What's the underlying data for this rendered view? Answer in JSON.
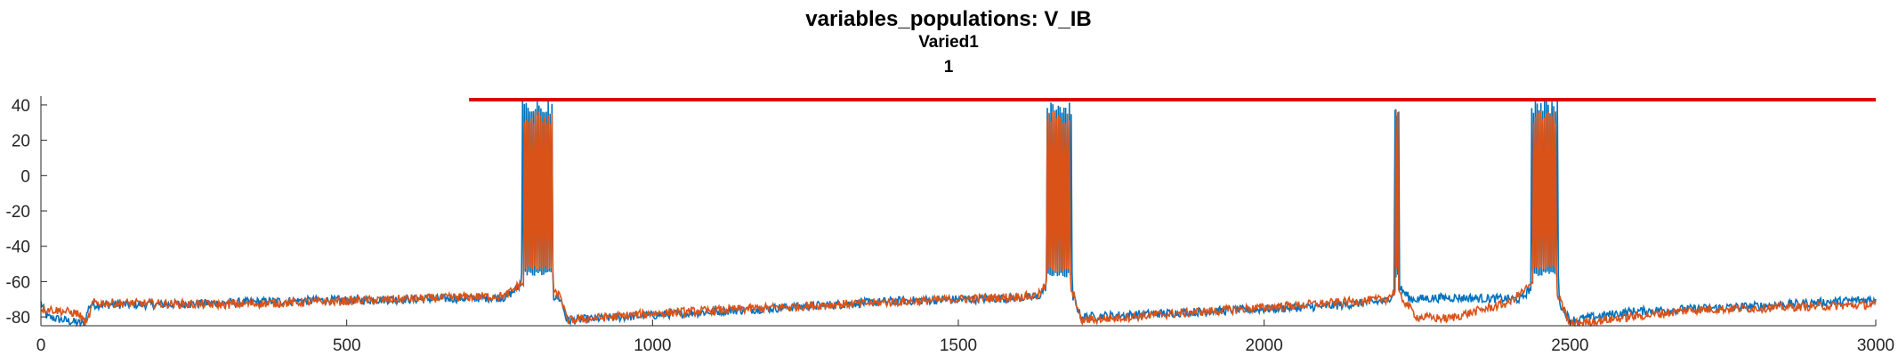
{
  "chart_data": {
    "type": "line",
    "title": "variables_populations: V_IB",
    "subtitle": "Varied1",
    "subtitle2": "1",
    "xlabel": "",
    "ylabel": "",
    "xlim": [
      0,
      3000
    ],
    "ylim": [
      -85,
      45
    ],
    "xticks": [
      0,
      500,
      1000,
      1500,
      2000,
      2500,
      3000
    ],
    "yticks": [
      40,
      20,
      0,
      -20,
      -40,
      -60,
      -80
    ],
    "grid": false,
    "legend": "none",
    "colors": {
      "series1": "#0072BD",
      "series2": "#D95319",
      "threshold": "#E00000",
      "axis": "#262626"
    },
    "series": [
      {
        "color": "#0072BD",
        "baseline": [
          {
            "x": 0,
            "y": -72
          },
          {
            "x": 10,
            "y": -80
          },
          {
            "x": 70,
            "y": -84
          },
          {
            "x": 80,
            "y": -73
          },
          {
            "x": 200,
            "y": -73
          },
          {
            "x": 400,
            "y": -71
          },
          {
            "x": 600,
            "y": -70
          },
          {
            "x": 760,
            "y": -69
          },
          {
            "x": 785,
            "y": -62
          },
          {
            "x": 850,
            "y": -70
          },
          {
            "x": 860,
            "y": -82
          },
          {
            "x": 1000,
            "y": -79
          },
          {
            "x": 1200,
            "y": -75
          },
          {
            "x": 1400,
            "y": -71
          },
          {
            "x": 1630,
            "y": -69
          },
          {
            "x": 1645,
            "y": -62
          },
          {
            "x": 1690,
            "y": -70
          },
          {
            "x": 1700,
            "y": -80
          },
          {
            "x": 1900,
            "y": -77
          },
          {
            "x": 2100,
            "y": -74
          },
          {
            "x": 2200,
            "y": -71
          },
          {
            "x": 2220,
            "y": -63
          },
          {
            "x": 2240,
            "y": -70
          },
          {
            "x": 2300,
            "y": -69
          },
          {
            "x": 2420,
            "y": -70
          },
          {
            "x": 2440,
            "y": -62
          },
          {
            "x": 2480,
            "y": -70
          },
          {
            "x": 2500,
            "y": -82
          },
          {
            "x": 2600,
            "y": -77
          },
          {
            "x": 2800,
            "y": -74
          },
          {
            "x": 3000,
            "y": -70
          }
        ],
        "bursts": [
          {
            "x_start": 785,
            "x_end": 838,
            "y_min": -57,
            "y_max": 43
          },
          {
            "x_start": 1643,
            "x_end": 1686,
            "y_min": -58,
            "y_max": 42
          },
          {
            "x_start": 2214,
            "x_end": 2220,
            "y_min": -58,
            "y_max": 40
          },
          {
            "x_start": 2437,
            "x_end": 2481,
            "y_min": -57,
            "y_max": 43
          }
        ]
      },
      {
        "color": "#D95319",
        "baseline": [
          {
            "x": 0,
            "y": -75
          },
          {
            "x": 60,
            "y": -78
          },
          {
            "x": 75,
            "y": -84
          },
          {
            "x": 85,
            "y": -72
          },
          {
            "x": 300,
            "y": -73
          },
          {
            "x": 500,
            "y": -71
          },
          {
            "x": 760,
            "y": -68
          },
          {
            "x": 785,
            "y": -61
          },
          {
            "x": 850,
            "y": -68
          },
          {
            "x": 860,
            "y": -82
          },
          {
            "x": 1000,
            "y": -78
          },
          {
            "x": 1300,
            "y": -73
          },
          {
            "x": 1630,
            "y": -68
          },
          {
            "x": 1645,
            "y": -61
          },
          {
            "x": 1690,
            "y": -68
          },
          {
            "x": 1700,
            "y": -82
          },
          {
            "x": 1900,
            "y": -77
          },
          {
            "x": 2200,
            "y": -70
          },
          {
            "x": 2215,
            "y": -65
          },
          {
            "x": 2250,
            "y": -80
          },
          {
            "x": 2300,
            "y": -81
          },
          {
            "x": 2400,
            "y": -72
          },
          {
            "x": 2440,
            "y": -61
          },
          {
            "x": 2480,
            "y": -68
          },
          {
            "x": 2500,
            "y": -84
          },
          {
            "x": 2700,
            "y": -76
          },
          {
            "x": 3000,
            "y": -73
          }
        ],
        "bursts": [
          {
            "x_start": 790,
            "x_end": 838,
            "y_min": -54,
            "y_max": 37
          },
          {
            "x_start": 1645,
            "x_end": 1684,
            "y_min": -55,
            "y_max": 37
          },
          {
            "x_start": 2215,
            "x_end": 2219,
            "y_min": -55,
            "y_max": 40
          },
          {
            "x_start": 2440,
            "x_end": 2479,
            "y_min": -54,
            "y_max": 37
          }
        ]
      }
    ],
    "threshold_line": {
      "x_start": 700,
      "x_end": 3000,
      "y": 43,
      "color": "#E00000"
    }
  }
}
